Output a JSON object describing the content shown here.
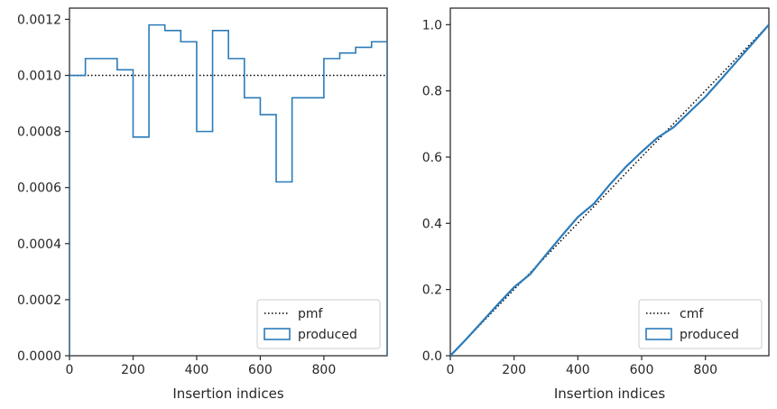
{
  "chart_data": [
    {
      "type": "line",
      "xlabel": "Insertion indices",
      "ylabel": "",
      "xlim": [
        0,
        999
      ],
      "ylim": [
        0,
        0.00124
      ],
      "xticks": [
        "0",
        "200",
        "400",
        "600",
        "800"
      ],
      "xtick_values": [
        0,
        200,
        400,
        600,
        800
      ],
      "yticks": [
        "0.0000",
        "0.0002",
        "0.0004",
        "0.0006",
        "0.0008",
        "0.0010",
        "0.0012"
      ],
      "ytick_values": [
        0,
        0.0002,
        0.0004,
        0.0006,
        0.0008,
        0.001,
        0.0012
      ],
      "grid": false,
      "legend_position": "lower-right",
      "series": [
        {
          "name": "pmf",
          "style": "dotted",
          "color": "#000000",
          "x": [
            0,
            999
          ],
          "y": [
            0.001,
            0.001
          ]
        },
        {
          "name": "produced",
          "style": "step-histogram",
          "color": "#2b7bb9",
          "bin_edges": [
            0,
            50,
            100,
            150,
            200,
            250,
            300,
            350,
            400,
            450,
            500,
            550,
            600,
            650,
            700,
            750,
            800,
            850,
            900,
            950,
            999
          ],
          "values": [
            0.001,
            0.00106,
            0.00106,
            0.00102,
            0.00078,
            0.00118,
            0.00116,
            0.00112,
            0.0008,
            0.00116,
            0.00106,
            0.00092,
            0.00086,
            0.00062,
            0.00092,
            0.00092,
            0.00106,
            0.00108,
            0.0011,
            0.00112
          ]
        }
      ]
    },
    {
      "type": "line",
      "xlabel": "Insertion indices",
      "ylabel": "",
      "xlim": [
        0,
        999
      ],
      "ylim": [
        0,
        1.05
      ],
      "xticks": [
        "0",
        "200",
        "400",
        "600",
        "800"
      ],
      "xtick_values": [
        0,
        200,
        400,
        600,
        800
      ],
      "yticks": [
        "0.0",
        "0.2",
        "0.4",
        "0.6",
        "0.8",
        "1.0"
      ],
      "ytick_values": [
        0,
        0.2,
        0.4,
        0.6,
        0.8,
        1.0
      ],
      "grid": false,
      "legend_position": "lower-right",
      "series": [
        {
          "name": "cmf",
          "style": "dotted",
          "color": "#000000",
          "x": [
            0,
            999
          ],
          "y": [
            0,
            1.0
          ]
        },
        {
          "name": "produced",
          "style": "solid",
          "color": "#2b7bb9",
          "x": [
            0,
            50,
            100,
            150,
            200,
            250,
            300,
            350,
            400,
            450,
            500,
            550,
            600,
            650,
            700,
            750,
            800,
            850,
            900,
            950,
            999
          ],
          "y": [
            0,
            0.05,
            0.103,
            0.156,
            0.207,
            0.246,
            0.305,
            0.363,
            0.419,
            0.459,
            0.517,
            0.57,
            0.616,
            0.659,
            0.69,
            0.736,
            0.782,
            0.836,
            0.891,
            0.946,
            1.0
          ]
        }
      ]
    }
  ]
}
